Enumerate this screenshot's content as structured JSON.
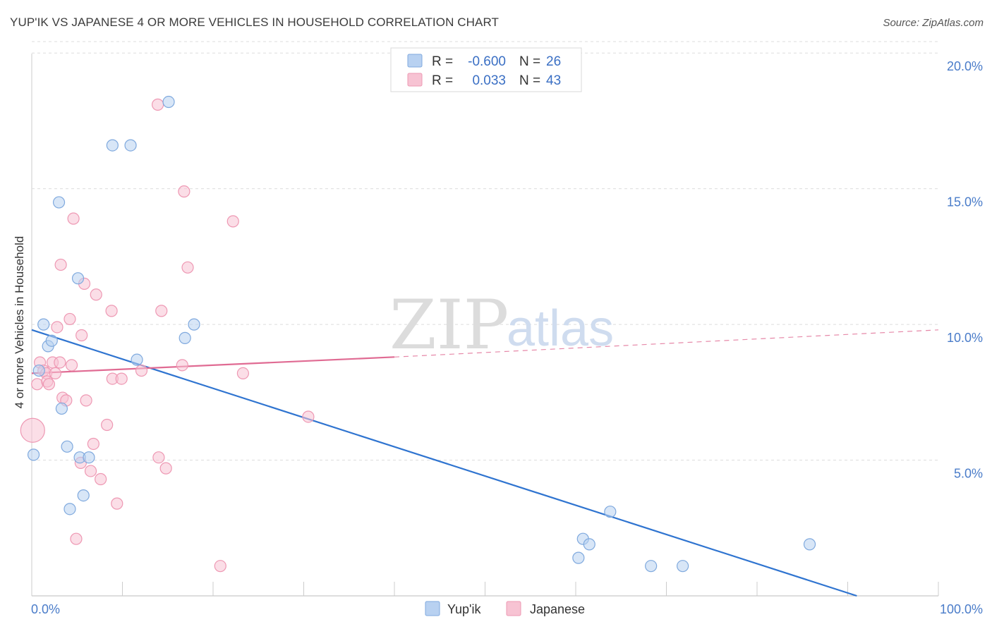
{
  "title": "YUP'IK VS JAPANESE 4 OR MORE VEHICLES IN HOUSEHOLD CORRELATION CHART",
  "source": "Source: ZipAtlas.com",
  "watermark": {
    "part1": "ZIP",
    "part2": "atlas"
  },
  "colors": {
    "blue_fill": "#b8d1f1",
    "blue_stroke": "#7fa9de",
    "blue_line": "#2f74d0",
    "pink_fill": "#f7c3d3",
    "pink_stroke": "#ee98b3",
    "pink_line": "#e06b93",
    "grid": "#dddddd",
    "tick": "#4a7cc9"
  },
  "legend": {
    "rows": [
      {
        "r_label": "R = ",
        "r_value": "-0.600",
        "n_label": "N = ",
        "n_value": "26"
      },
      {
        "r_label": "R = ",
        "r_value": "0.033",
        "n_label": "N = ",
        "n_value": "43"
      }
    ]
  },
  "chart_data": {
    "type": "scatter",
    "title": "YUP'IK VS JAPANESE 4 OR MORE VEHICLES IN HOUSEHOLD CORRELATION CHART",
    "xlabel": "",
    "ylabel": "4 or more Vehicles in Household",
    "xlim": [
      0,
      100
    ],
    "ylim": [
      0,
      20.5
    ],
    "x_tick_labels": {
      "left": "0.0%",
      "right": "100.0%"
    },
    "y_ticks": [
      {
        "value": 5,
        "label": "5.0%"
      },
      {
        "value": 10,
        "label": "10.0%"
      },
      {
        "value": 15,
        "label": "15.0%"
      },
      {
        "value": 20,
        "label": "20.0%"
      }
    ],
    "series": [
      {
        "name": "Yup'ik",
        "points": [
          [
            0.2,
            5.2
          ],
          [
            0.8,
            8.3
          ],
          [
            1.3,
            10.0
          ],
          [
            1.8,
            9.2
          ],
          [
            2.2,
            9.4
          ],
          [
            3.0,
            14.5
          ],
          [
            3.3,
            6.9
          ],
          [
            3.9,
            5.5
          ],
          [
            4.2,
            3.2
          ],
          [
            5.1,
            11.7
          ],
          [
            5.3,
            5.1
          ],
          [
            5.7,
            3.7
          ],
          [
            6.3,
            5.1
          ],
          [
            8.9,
            16.6
          ],
          [
            10.9,
            16.6
          ],
          [
            11.6,
            8.7
          ],
          [
            15.1,
            18.2
          ],
          [
            16.9,
            9.5
          ],
          [
            17.9,
            10.0
          ],
          [
            60.3,
            1.4
          ],
          [
            60.8,
            2.1
          ],
          [
            61.5,
            1.9
          ],
          [
            63.8,
            3.1
          ],
          [
            68.3,
            1.1
          ],
          [
            71.8,
            1.1
          ],
          [
            85.8,
            1.9
          ]
        ],
        "trend": {
          "x0": 0,
          "y0": 9.8,
          "x1": 91,
          "y1": 0.0
        }
      },
      {
        "name": "Japanese",
        "points": [
          [
            0.1,
            6.1,
            "large"
          ],
          [
            0.6,
            7.8
          ],
          [
            0.9,
            8.6
          ],
          [
            1.3,
            8.3
          ],
          [
            1.6,
            8.2
          ],
          [
            1.7,
            7.9
          ],
          [
            1.9,
            7.8
          ],
          [
            2.3,
            8.6
          ],
          [
            2.6,
            8.2
          ],
          [
            2.8,
            9.9
          ],
          [
            3.1,
            8.6
          ],
          [
            3.2,
            12.2
          ],
          [
            3.4,
            7.3
          ],
          [
            3.8,
            7.2
          ],
          [
            4.2,
            10.2
          ],
          [
            4.4,
            8.5
          ],
          [
            4.6,
            13.9
          ],
          [
            4.9,
            2.1
          ],
          [
            5.5,
            9.6
          ],
          [
            5.4,
            4.9
          ],
          [
            5.8,
            11.5
          ],
          [
            6.0,
            7.2
          ],
          [
            6.5,
            4.6
          ],
          [
            6.8,
            5.6
          ],
          [
            7.1,
            11.1
          ],
          [
            7.6,
            4.3
          ],
          [
            8.3,
            6.3
          ],
          [
            8.8,
            10.5
          ],
          [
            8.9,
            8.0
          ],
          [
            9.4,
            3.4
          ],
          [
            9.9,
            8.0
          ],
          [
            12.1,
            8.3
          ],
          [
            13.9,
            18.1
          ],
          [
            14.0,
            5.1
          ],
          [
            14.3,
            10.5
          ],
          [
            14.8,
            4.7
          ],
          [
            16.6,
            8.5
          ],
          [
            16.8,
            14.9
          ],
          [
            17.2,
            12.1
          ],
          [
            20.8,
            1.1
          ],
          [
            22.2,
            13.8
          ],
          [
            23.3,
            8.2
          ],
          [
            30.5,
            6.6
          ]
        ],
        "trend": {
          "x0": 0,
          "y0": 8.2,
          "x1": 40,
          "y1": 8.8,
          "dashed_to_x": 100,
          "dashed_to_y": 9.8
        }
      }
    ],
    "legend_position": "top-center",
    "grid": true
  }
}
